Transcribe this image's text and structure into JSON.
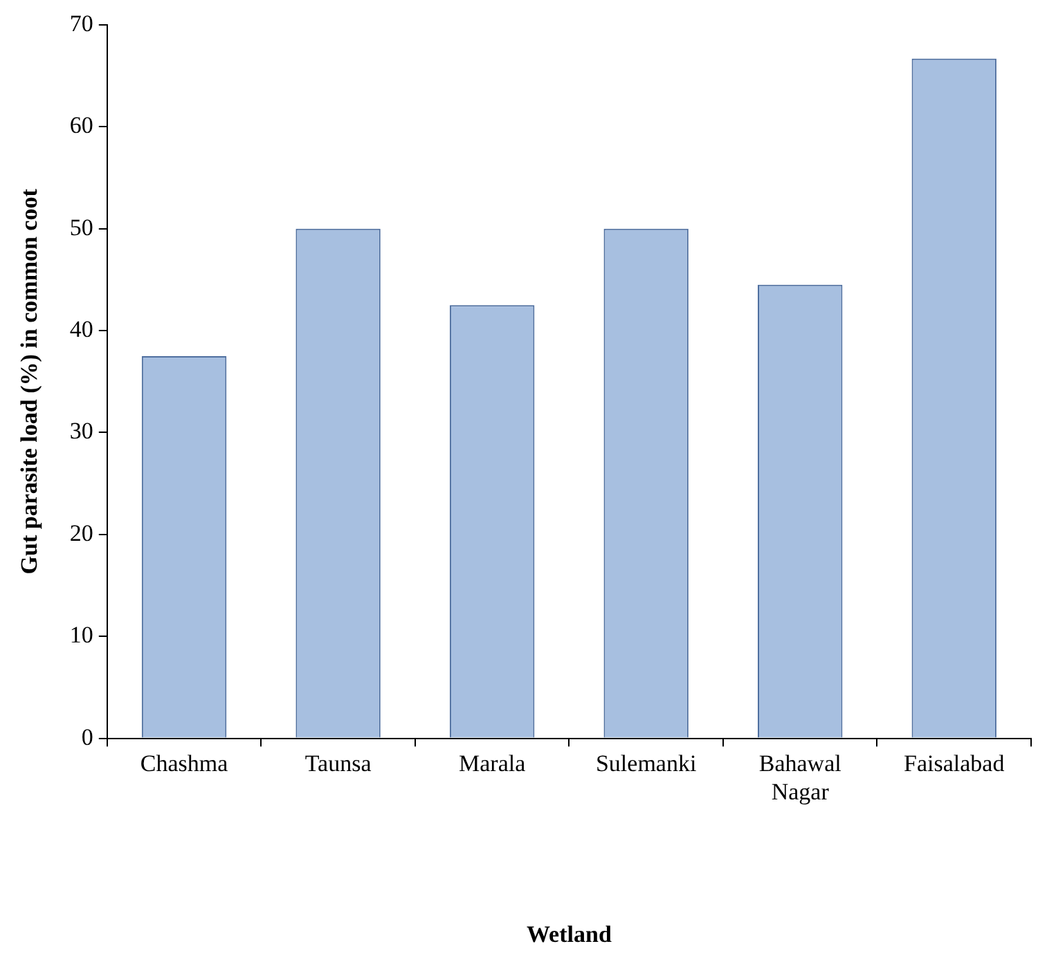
{
  "chart_data": {
    "type": "bar",
    "xlabel": "Wetland",
    "ylabel": "Gut parasite load (%) in common coot",
    "categories": [
      "Chashma",
      "Taunsa",
      "Marala",
      "Sulemanki",
      "Bahawal Nagar",
      "Faisalabad"
    ],
    "values": [
      37.5,
      50,
      42.5,
      50,
      44.5,
      66.7
    ],
    "color": "#a7bfe0",
    "ylim": [
      0,
      70
    ],
    "yticks": [
      0,
      10,
      20,
      30,
      40,
      50,
      60,
      70
    ],
    "grid": false,
    "legend": false
  }
}
